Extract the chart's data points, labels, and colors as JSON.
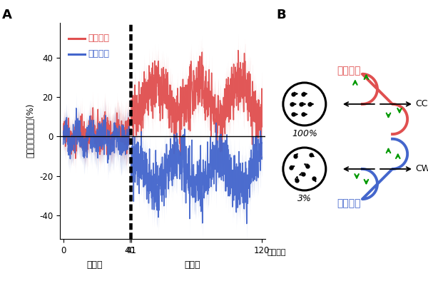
{
  "title_A": "A",
  "title_B": "B",
  "ylabel": "邪魔に対抗する力(%)",
  "xlabel_pre": "学習前",
  "xlabel_post": "学習後",
  "xlabel_unit": "（試行）",
  "legend_no_hes": "迷いなし",
  "legend_hes": "迷いあり",
  "label_B_no_hes": "迷いなし",
  "label_B_hes": "迷いあり",
  "label_100": "100%",
  "label_3": "3%",
  "label_CCW": "CCW",
  "label_CW": "CW",
  "color_red": "#e05050",
  "color_blue": "#4466cc",
  "color_green": "#009900",
  "yticks": [
    -40,
    -20,
    0,
    20,
    40
  ],
  "ylim": [
    -52,
    58
  ],
  "seed": 42
}
